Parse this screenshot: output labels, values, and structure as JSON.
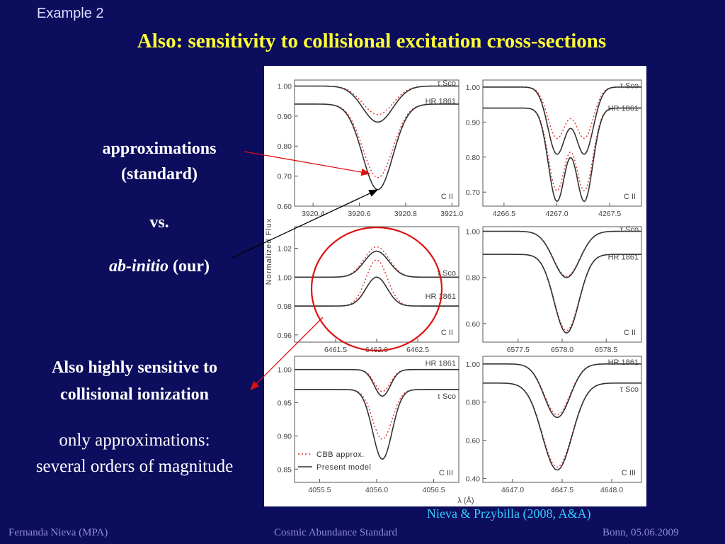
{
  "slide": {
    "example_label": "Example 2",
    "title": "Also: sensitivity to collisional excitation cross-sections",
    "approx_line1": "approximations",
    "approx_line2": "(standard)",
    "vs": "vs.",
    "abinitio_italic": "ab-initio",
    "abinitio_rest": " (our)",
    "ionization_line1": "Also highly sensitive to",
    "ionization_line2": "collisional ionization",
    "only_approx_line1": "only approximations:",
    "only_approx_line2": "several orders of magnitude",
    "citation": "Nieva & Przybilla (2008, A&A)",
    "footer_left": "Fernanda Nieva (MPA)",
    "footer_center": "Cosmic Abundance Standard",
    "footer_right": "Bonn, 05.06.2009"
  },
  "colors": {
    "background": "#0d0d5e",
    "title": "#ffff33",
    "citation": "#33ccff",
    "footer": "#8c8cd4",
    "model_line": "#333333",
    "approx_line": "#e03030",
    "highlight": "#dd1111"
  },
  "figure": {
    "ylabel": "Normalized Flux",
    "xlabel": "λ (Å)",
    "legend": [
      {
        "label": "CBB approx.",
        "style": "dotted-red"
      },
      {
        "label": "Present model",
        "style": "solid-dark"
      }
    ]
  },
  "chart_data": [
    {
      "type": "line",
      "ion": "C II",
      "xlim": [
        3920.32,
        3921.03
      ],
      "ylim": [
        0.6,
        1.02
      ],
      "xticks": [
        "3920.4",
        "3920.6",
        "3920.8",
        "3921.0"
      ],
      "yticks": [
        "1.00",
        "0.90",
        "0.80",
        "0.70",
        "0.60"
      ],
      "stars": [
        {
          "name": "τ Sco",
          "continuum": 1.0,
          "center": 3920.68,
          "sigma": 0.065,
          "model_depth": 0.12,
          "approx_depth": 0.095,
          "label_y": 1.01
        },
        {
          "name": "HR 1861",
          "continuum": 0.94,
          "center": 3920.68,
          "sigma": 0.065,
          "model_depth": 0.285,
          "approx_depth": 0.245,
          "label_y": 0.95
        }
      ]
    },
    {
      "type": "line",
      "ion": "C II",
      "xlim": [
        4266.3,
        4267.8
      ],
      "ylim": [
        0.66,
        1.02
      ],
      "xticks": [
        "4266.5",
        "4267.0",
        "4267.5"
      ],
      "yticks": [
        "1.00",
        "0.90",
        "0.80",
        "0.70"
      ],
      "stars": [
        {
          "name": "τ Sco",
          "continuum": 1.0,
          "centers": [
            4267.0,
            4267.26
          ],
          "sigma": 0.085,
          "model_depth": 0.19,
          "approx_depth": 0.145,
          "label_y": 1.005
        },
        {
          "name": "HR 1861",
          "continuum": 0.94,
          "centers": [
            4267.0,
            4267.26
          ],
          "sigma": 0.08,
          "model_depth": 0.265,
          "approx_depth": 0.235,
          "label_y": 0.94
        }
      ]
    },
    {
      "type": "line",
      "ion": "C II",
      "xlim": [
        6461.0,
        6463.0
      ],
      "ylim": [
        0.955,
        1.035
      ],
      "xticks": [
        "6461.5",
        "6462.0",
        "6462.5"
      ],
      "yticks": [
        "1.02",
        "1.00",
        "0.98",
        "0.96"
      ],
      "stars": [
        {
          "name": "τ Sco",
          "continuum": 1.0,
          "center": 6462.0,
          "sigma": 0.15,
          "model_depth": -0.018,
          "approx_depth": -0.021,
          "label_y": 1.003
        },
        {
          "name": "HR 1861",
          "continuum": 0.98,
          "center": 6462.0,
          "sigma": 0.13,
          "model_depth": -0.02,
          "approx_depth": -0.032,
          "label_y": 0.987
        }
      ]
    },
    {
      "type": "line",
      "ion": "C II",
      "xlim": [
        6577.1,
        6578.9
      ],
      "ylim": [
        0.52,
        1.02
      ],
      "xticks": [
        "6577.5",
        "6578.0",
        "6578.5"
      ],
      "yticks": [
        "1.00",
        "0.80",
        "0.60"
      ],
      "stars": [
        {
          "name": "τ Sco",
          "continuum": 1.0,
          "center": 6578.05,
          "sigma": 0.15,
          "model_depth": 0.2,
          "approx_depth": 0.195,
          "label_y": 1.01
        },
        {
          "name": "HR 1861",
          "continuum": 0.9,
          "center": 6578.05,
          "sigma": 0.14,
          "model_depth": 0.34,
          "approx_depth": 0.33,
          "label_y": 0.89
        }
      ]
    },
    {
      "type": "line",
      "ion": "C III",
      "xlim": [
        4055.28,
        4056.72
      ],
      "ylim": [
        0.83,
        1.02
      ],
      "xticks": [
        "4055.5",
        "4056.0",
        "4056.5"
      ],
      "yticks": [
        "1.00",
        "0.95",
        "0.90",
        "0.85"
      ],
      "stars": [
        {
          "name": "HR 1861",
          "continuum": 1.0,
          "center": 4056.05,
          "sigma": 0.07,
          "model_depth": 0.04,
          "approx_depth": 0.033,
          "label_y": 1.01
        },
        {
          "name": "τ Sco",
          "continuum": 0.97,
          "center": 4056.05,
          "sigma": 0.085,
          "model_depth": 0.105,
          "approx_depth": 0.075,
          "label_y": 0.96
        }
      ]
    },
    {
      "type": "line",
      "ion": "C III",
      "xlim": [
        4646.7,
        4648.3
      ],
      "ylim": [
        0.38,
        1.04
      ],
      "xticks": [
        "4647.0",
        "4647.5",
        "4648.0"
      ],
      "yticks": [
        "1.00",
        "0.80",
        "0.60",
        "0.40"
      ],
      "stars": [
        {
          "name": "HR 1861",
          "continuum": 1.0,
          "center": 4647.45,
          "sigma": 0.13,
          "model_depth": 0.28,
          "approx_depth": 0.265,
          "label_y": 1.01
        },
        {
          "name": "τ Sco",
          "continuum": 0.9,
          "center": 4647.45,
          "sigma": 0.15,
          "model_depth": 0.455,
          "approx_depth": 0.44,
          "label_y": 0.87
        }
      ]
    }
  ]
}
